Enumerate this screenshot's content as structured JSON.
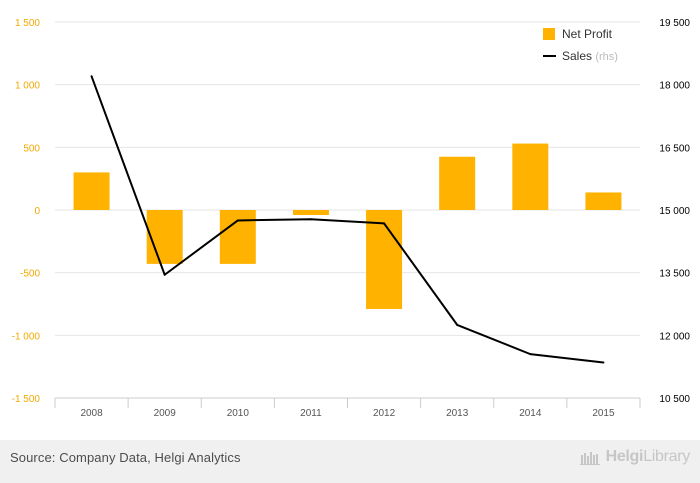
{
  "chart_data": {
    "type": "bar+line",
    "categories": [
      "2008",
      "2009",
      "2010",
      "2011",
      "2012",
      "2013",
      "2014",
      "2015"
    ],
    "series": [
      {
        "name": "Net Profit",
        "type": "bar",
        "axis": "left",
        "color": "#ffb300",
        "values": [
          300,
          -430,
          -430,
          -40,
          -790,
          425,
          530,
          140
        ]
      },
      {
        "name": "Sales",
        "suffix": "(rhs)",
        "type": "line",
        "axis": "right",
        "color": "#000000",
        "values": [
          18200,
          13450,
          14750,
          14780,
          14680,
          12250,
          11550,
          11350
        ]
      }
    ],
    "y_left": {
      "range": [
        -1500,
        1500
      ],
      "ticks": [
        1500,
        1000,
        500,
        0,
        -500,
        -1000,
        -1500
      ],
      "tick_labels": [
        "1 500",
        "1 000",
        "500",
        "0",
        "-500",
        "-1 000",
        "-1 500"
      ],
      "color": "#f2a900"
    },
    "y_right": {
      "range": [
        10500,
        19500
      ],
      "ticks": [
        19500,
        18000,
        16500,
        15000,
        13500,
        12000,
        10500
      ],
      "tick_labels": [
        "19 500",
        "18 000",
        "16 500",
        "15 000",
        "13 500",
        "12 000",
        "10 500"
      ],
      "color": "#000000"
    },
    "legend_position": "top-right",
    "grid": true
  },
  "footer": {
    "source": "Source: Company Data, Helgi Analytics",
    "brand_bold": "Helgi",
    "brand_light": "Library"
  },
  "colors": {
    "background": "#ffffff",
    "grid": "#e6e6e6",
    "axis_text": "#555555"
  }
}
